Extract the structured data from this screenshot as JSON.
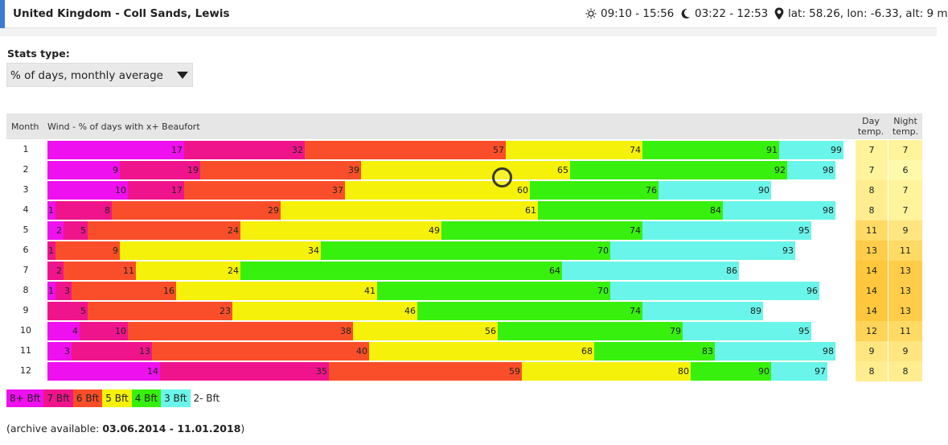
{
  "header": {
    "title": "United Kingdom - Coll Sands, Lewis",
    "sun": "09:10 - 15:56",
    "moon": "03:22 - 12:53",
    "location": "lat: 58.26, lon: -6.33, alt: 9 m",
    "sun_icon": "sun-icon",
    "moon_icon": "moon-icon",
    "location_icon": "map-pin-icon"
  },
  "stats": {
    "label": "Stats type:",
    "selected": "% of days, monthly average"
  },
  "table": {
    "col_month": "Month",
    "col_wind": "Wind - % of days with x+ Beaufort",
    "col_day_line1": "Day",
    "col_day_line2": "temp.",
    "col_night_line1": "Night",
    "col_night_line2": "temp."
  },
  "chart_data": {
    "type": "bar",
    "stacking": "cumulative percentage",
    "xlim": [
      0,
      100
    ],
    "levels": [
      "8+ Bft",
      "7 Bft",
      "6 Bft",
      "5 Bft",
      "4 Bft",
      "3 Bft",
      "2- Bft"
    ],
    "colors": [
      "#ee10ee",
      "#f0148c",
      "#fa4e2a",
      "#f5f10a",
      "#38f00e",
      "#69f5ea",
      "#ffffff"
    ],
    "categories": [
      "1",
      "2",
      "3",
      "4",
      "5",
      "6",
      "7",
      "8",
      "9",
      "10",
      "11",
      "12"
    ],
    "cumulative": [
      [
        17,
        32,
        57,
        74,
        91,
        99
      ],
      [
        9,
        19,
        39,
        65,
        92,
        98
      ],
      [
        10,
        17,
        37,
        60,
        76,
        90
      ],
      [
        1,
        8,
        29,
        61,
        84,
        98
      ],
      [
        2,
        5,
        24,
        49,
        74,
        95
      ],
      [
        1,
        9,
        34,
        70,
        93
      ],
      [
        2,
        11,
        24,
        64,
        86
      ],
      [
        1,
        3,
        16,
        41,
        70,
        96
      ],
      [
        5,
        23,
        46,
        74,
        89
      ],
      [
        4,
        10,
        38,
        56,
        79,
        95
      ],
      [
        3,
        13,
        40,
        68,
        83,
        98
      ],
      [
        14,
        35,
        59,
        80,
        90,
        97
      ]
    ],
    "segment_levels": [
      [
        0,
        1,
        2,
        3,
        4,
        5
      ],
      [
        0,
        1,
        2,
        3,
        4,
        5
      ],
      [
        0,
        1,
        2,
        3,
        4,
        5
      ],
      [
        0,
        1,
        2,
        3,
        4,
        5
      ],
      [
        0,
        1,
        2,
        3,
        4,
        5
      ],
      [
        1,
        2,
        3,
        4,
        5
      ],
      [
        1,
        2,
        3,
        4,
        5
      ],
      [
        0,
        1,
        2,
        3,
        4,
        5
      ],
      [
        1,
        2,
        3,
        4,
        5
      ],
      [
        0,
        1,
        2,
        3,
        4,
        5
      ],
      [
        0,
        1,
        2,
        3,
        4,
        5
      ],
      [
        0,
        1,
        2,
        3,
        4,
        5
      ]
    ],
    "day_temp": [
      7,
      7,
      8,
      8,
      11,
      13,
      14,
      14,
      14,
      12,
      9,
      8
    ],
    "night_temp": [
      7,
      6,
      7,
      7,
      9,
      11,
      13,
      13,
      13,
      11,
      9,
      8
    ]
  },
  "archive": {
    "prefix": "(archive available: ",
    "range": "03.06.2014 - 11.01.2018",
    "suffix": ")"
  },
  "spinner_icon": "loading-spinner-icon"
}
